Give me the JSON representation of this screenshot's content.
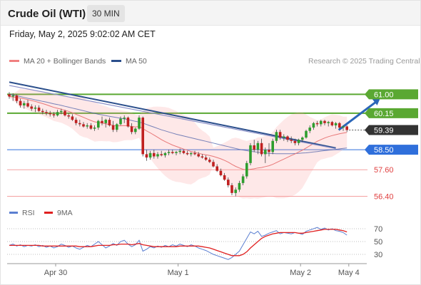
{
  "header": {
    "title": "Crude Oil (WTI)",
    "timeframe": "30 MIN"
  },
  "datetime": "Friday, May 2, 2025 9:02:02 AM CET",
  "legend": {
    "ma20": {
      "label": "MA 20 + Bollinger Bands",
      "color": "#f08080"
    },
    "ma50": {
      "label": "MA 50",
      "color": "#2b4f8c"
    }
  },
  "copyright": "Research © 2025 Trading Central",
  "rsi_legend": {
    "rsi": {
      "label": "RSI",
      "color": "#5b7fd1"
    },
    "ma9": {
      "label": "9MA",
      "color": "#e02020"
    }
  },
  "chart_data": [
    {
      "type": "candlestick",
      "ylim": [
        56.0,
        62.2
      ],
      "x_categories": [
        "Apr 30",
        "May 1",
        "May 2",
        "May 4"
      ],
      "levels": [
        {
          "label": "61.00",
          "value": 61.0,
          "kind": "resistance",
          "color": "#5aa832"
        },
        {
          "label": "60.15",
          "value": 60.15,
          "kind": "resistance",
          "color": "#5aa832"
        },
        {
          "label": "59.39",
          "value": 59.39,
          "kind": "current",
          "color": "#333333"
        },
        {
          "label": "58.50",
          "value": 58.5,
          "kind": "pivot",
          "color": "#2f6fdb"
        },
        {
          "label": "57.60",
          "value": 57.6,
          "kind": "support",
          "color": "#f4a0a0"
        },
        {
          "label": "56.40",
          "value": 56.4,
          "kind": "support",
          "color": "#f4a0a0"
        }
      ],
      "candles": [
        [
          61.0,
          61.1,
          60.8,
          60.9
        ],
        [
          60.9,
          61.05,
          60.7,
          60.95
        ],
        [
          60.95,
          61.0,
          60.6,
          60.7
        ],
        [
          60.7,
          60.8,
          60.4,
          60.5
        ],
        [
          60.5,
          60.7,
          60.35,
          60.6
        ],
        [
          60.6,
          60.75,
          60.4,
          60.45
        ],
        [
          60.45,
          60.55,
          60.25,
          60.35
        ],
        [
          60.35,
          60.5,
          60.2,
          60.4
        ],
        [
          60.4,
          60.5,
          60.2,
          60.25
        ],
        [
          60.25,
          60.35,
          60.1,
          60.2
        ],
        [
          60.2,
          60.3,
          60.05,
          60.15
        ],
        [
          60.15,
          60.25,
          60.0,
          60.1
        ],
        [
          60.1,
          60.2,
          59.95,
          60.05
        ],
        [
          60.05,
          60.3,
          60.0,
          60.2
        ],
        [
          60.2,
          60.35,
          60.1,
          60.25
        ],
        [
          60.25,
          60.3,
          60.0,
          60.05
        ],
        [
          60.05,
          60.15,
          59.9,
          60.0
        ],
        [
          60.0,
          60.1,
          59.8,
          59.85
        ],
        [
          59.85,
          59.95,
          59.6,
          59.7
        ],
        [
          59.7,
          59.85,
          59.55,
          59.65
        ],
        [
          59.65,
          59.75,
          59.5,
          59.55
        ],
        [
          59.55,
          59.7,
          59.45,
          59.6
        ],
        [
          59.6,
          59.7,
          59.4,
          59.45
        ],
        [
          59.45,
          59.6,
          59.35,
          59.5
        ],
        [
          59.5,
          59.85,
          59.4,
          59.8
        ],
        [
          59.8,
          60.0,
          59.6,
          59.7
        ],
        [
          59.7,
          59.9,
          59.5,
          59.85
        ],
        [
          59.85,
          59.95,
          59.55,
          59.6
        ],
        [
          59.6,
          59.8,
          59.3,
          59.4
        ],
        [
          59.4,
          59.7,
          59.3,
          59.65
        ],
        [
          59.65,
          60.0,
          59.6,
          59.9
        ],
        [
          59.9,
          60.05,
          59.7,
          59.95
        ],
        [
          59.95,
          60.0,
          59.5,
          59.55
        ],
        [
          59.55,
          59.7,
          59.2,
          59.3
        ],
        [
          59.3,
          59.5,
          59.2,
          59.45
        ],
        [
          59.45,
          60.05,
          59.4,
          59.95
        ],
        [
          59.95,
          60.0,
          58.2,
          58.3
        ],
        [
          58.3,
          58.5,
          58.0,
          58.15
        ],
        [
          58.15,
          58.45,
          58.05,
          58.35
        ],
        [
          58.35,
          58.5,
          58.1,
          58.2
        ],
        [
          58.2,
          58.4,
          58.1,
          58.3
        ],
        [
          58.3,
          58.45,
          58.2,
          58.25
        ],
        [
          58.25,
          58.4,
          58.15,
          58.35
        ],
        [
          58.35,
          58.5,
          58.25,
          58.4
        ],
        [
          58.4,
          58.5,
          58.3,
          58.35
        ],
        [
          58.35,
          58.45,
          58.25,
          58.4
        ],
        [
          58.4,
          58.55,
          58.3,
          58.45
        ],
        [
          58.45,
          58.5,
          58.3,
          58.35
        ],
        [
          58.35,
          58.45,
          58.25,
          58.3
        ],
        [
          58.3,
          58.4,
          58.2,
          58.35
        ],
        [
          58.35,
          58.45,
          58.25,
          58.3
        ],
        [
          58.3,
          58.4,
          58.15,
          58.2
        ],
        [
          58.2,
          58.3,
          58.1,
          58.15
        ],
        [
          58.15,
          58.25,
          58.0,
          58.05
        ],
        [
          58.05,
          58.15,
          57.9,
          57.95
        ],
        [
          57.95,
          58.05,
          57.7,
          57.75
        ],
        [
          57.75,
          57.85,
          57.5,
          57.55
        ],
        [
          57.55,
          57.65,
          57.3,
          57.35
        ],
        [
          57.35,
          57.45,
          57.1,
          57.15
        ],
        [
          57.15,
          57.25,
          56.8,
          56.9
        ],
        [
          56.9,
          57.0,
          56.45,
          56.55
        ],
        [
          56.55,
          56.8,
          56.4,
          56.7
        ],
        [
          56.7,
          57.1,
          56.6,
          57.0
        ],
        [
          57.0,
          57.4,
          56.9,
          57.3
        ],
        [
          57.3,
          58.0,
          57.2,
          57.9
        ],
        [
          57.9,
          58.8,
          57.8,
          58.7
        ],
        [
          58.7,
          58.95,
          58.4,
          58.5
        ],
        [
          58.5,
          58.9,
          58.3,
          58.8
        ],
        [
          58.8,
          59.0,
          58.2,
          58.3
        ],
        [
          58.3,
          58.6,
          57.9,
          58.5
        ],
        [
          58.5,
          58.8,
          58.2,
          58.4
        ],
        [
          58.4,
          59.0,
          58.3,
          58.9
        ],
        [
          58.9,
          59.4,
          58.8,
          59.3
        ],
        [
          59.3,
          59.4,
          58.95,
          59.05
        ],
        [
          59.05,
          59.2,
          58.9,
          59.1
        ],
        [
          59.1,
          59.15,
          58.85,
          58.95
        ],
        [
          58.95,
          59.1,
          58.8,
          58.9
        ],
        [
          58.9,
          59.0,
          58.7,
          58.8
        ],
        [
          58.8,
          59.0,
          58.7,
          58.95
        ],
        [
          58.95,
          59.1,
          58.85,
          59.05
        ],
        [
          59.05,
          59.4,
          59.0,
          59.35
        ],
        [
          59.35,
          59.6,
          59.25,
          59.5
        ],
        [
          59.5,
          59.75,
          59.4,
          59.7
        ],
        [
          59.7,
          59.8,
          59.55,
          59.65
        ],
        [
          59.65,
          59.85,
          59.55,
          59.8
        ],
        [
          59.8,
          59.85,
          59.6,
          59.7
        ],
        [
          59.7,
          59.8,
          59.55,
          59.75
        ],
        [
          59.75,
          59.8,
          59.55,
          59.6
        ],
        [
          59.6,
          59.75,
          59.45,
          59.7
        ],
        [
          59.7,
          59.75,
          59.45,
          59.5
        ],
        [
          59.5,
          59.6,
          59.35,
          59.55
        ],
        [
          59.55,
          59.6,
          59.3,
          59.39
        ]
      ],
      "ma20": [
        60.9,
        60.88,
        60.86,
        60.83,
        60.8,
        60.76,
        60.72,
        60.68,
        60.63,
        60.58,
        60.53,
        60.47,
        60.41,
        60.37,
        60.33,
        60.28,
        60.23,
        60.17,
        60.1,
        60.03,
        59.96,
        59.89,
        59.82,
        59.76,
        59.73,
        59.7,
        59.67,
        59.64,
        59.6,
        59.58,
        59.58,
        59.59,
        59.58,
        59.55,
        59.53,
        59.55,
        59.45,
        59.35,
        59.26,
        59.16,
        59.06,
        58.96,
        58.87,
        58.79,
        58.71,
        58.65,
        58.59,
        58.53,
        58.48,
        58.42,
        58.38,
        58.34,
        58.3,
        58.27,
        58.24,
        58.2,
        58.15,
        58.09,
        58.02,
        57.94,
        57.84,
        57.75,
        57.68,
        57.62,
        57.6,
        57.62,
        57.64,
        57.68,
        57.7,
        57.74,
        57.78,
        57.84,
        57.92,
        58.0,
        58.08,
        58.16,
        58.24,
        58.31,
        58.4,
        58.48,
        58.58,
        58.68,
        58.78,
        58.88,
        58.96,
        59.03,
        59.09,
        59.14,
        59.18,
        59.22,
        59.25,
        59.28
      ],
      "ma50": [
        61.0,
        60.97,
        60.93,
        60.9,
        60.86,
        60.82,
        60.79,
        60.75,
        60.72,
        60.68,
        60.65,
        60.61,
        60.57,
        60.54,
        60.5,
        60.46,
        60.42,
        60.38,
        60.34,
        60.3,
        60.26,
        60.22,
        60.18,
        60.14,
        60.1,
        60.07,
        60.04,
        60.01,
        59.98,
        59.95,
        59.92,
        59.89,
        59.86,
        59.82,
        59.78,
        59.75,
        59.7,
        59.64,
        59.58,
        59.52,
        59.46,
        59.4,
        59.35,
        59.3,
        59.25,
        59.2,
        59.16,
        59.12,
        59.08,
        59.04,
        59.0,
        58.96,
        58.92,
        58.88,
        58.84,
        58.8,
        58.76,
        58.72,
        58.68,
        58.64,
        58.6,
        58.56,
        58.52,
        58.49,
        58.46,
        58.43,
        58.41,
        58.39,
        58.37,
        58.35,
        58.34,
        58.33,
        58.32,
        58.32,
        58.32,
        58.32,
        58.32,
        58.33,
        58.34,
        58.35,
        58.36,
        58.38,
        58.4,
        58.42,
        58.44,
        58.46,
        58.48,
        58.5,
        58.52,
        58.54,
        58.56,
        58.58
      ],
      "trendlines": [
        {
          "from": [
            0,
            61.55
          ],
          "to": [
            88,
            58.58
          ],
          "color": "#2b4f8c"
        },
        {
          "from": [
            0,
            61.4
          ],
          "to": [
            88,
            58.55
          ],
          "color": "#8a8fc8"
        }
      ],
      "projection": {
        "from": [
          88,
          59.39
        ],
        "to": [
          100,
          61.0
        ],
        "color": "#2b66b8"
      }
    },
    {
      "type": "line",
      "name": "RSI panel",
      "ylim": [
        20,
        80
      ],
      "ticks": [
        70,
        50,
        30
      ],
      "series": [
        {
          "name": "RSI",
          "color": "#5b7fd1",
          "values": [
            44,
            46,
            43,
            45,
            42,
            44,
            43,
            45,
            42,
            44,
            41,
            43,
            40,
            42,
            46,
            44,
            41,
            43,
            40,
            38,
            41,
            44,
            42,
            46,
            50,
            45,
            40,
            43,
            47,
            44,
            50,
            52,
            46,
            42,
            45,
            52,
            35,
            38,
            42,
            40,
            43,
            41,
            44,
            42,
            45,
            43,
            46,
            44,
            42,
            45,
            43,
            40,
            38,
            36,
            33,
            30,
            28,
            26,
            24,
            22,
            25,
            30,
            35,
            45,
            55,
            65,
            62,
            66,
            58,
            60,
            63,
            65,
            67,
            62,
            64,
            63,
            62,
            64,
            63,
            61,
            66,
            68,
            70,
            72,
            69,
            71,
            68,
            70,
            67,
            66,
            64,
            60
          ]
        },
        {
          "name": "9MA",
          "color": "#e02020",
          "values": [
            44,
            44,
            44,
            44,
            44,
            44,
            44,
            44,
            44,
            43,
            43,
            43,
            43,
            43,
            43,
            43,
            43,
            43,
            43,
            42,
            42,
            42,
            42,
            43,
            44,
            44,
            44,
            44,
            45,
            45,
            46,
            46,
            46,
            45,
            46,
            47,
            45,
            44,
            43,
            42,
            42,
            42,
            42,
            42,
            42,
            42,
            43,
            43,
            43,
            43,
            43,
            43,
            42,
            41,
            40,
            38,
            36,
            34,
            32,
            30,
            28,
            28,
            28,
            30,
            34,
            40,
            45,
            50,
            55,
            58,
            60,
            62,
            63,
            64,
            64,
            64,
            64,
            64,
            63,
            63,
            64,
            65,
            66,
            67,
            68,
            69,
            69,
            69,
            69,
            68,
            67,
            65
          ]
        }
      ]
    }
  ]
}
